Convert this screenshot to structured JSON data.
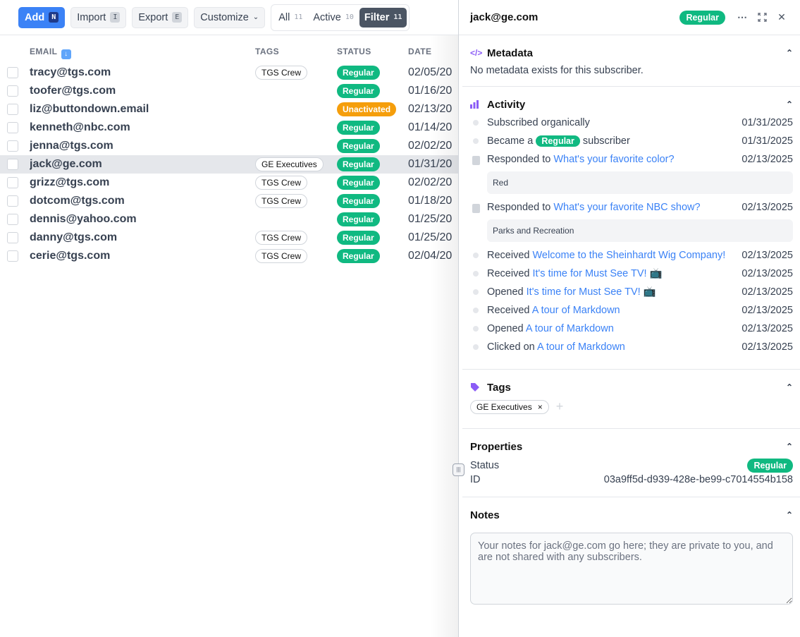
{
  "toolbar": {
    "add": {
      "label": "Add",
      "key": "N"
    },
    "import": {
      "label": "Import",
      "key": "I"
    },
    "export": {
      "label": "Export",
      "key": "E"
    },
    "customize": "Customize",
    "filters": [
      {
        "label": "All",
        "count": "11"
      },
      {
        "label": "Active",
        "count": "10"
      },
      {
        "label": "Filter",
        "count": "11",
        "active": true
      }
    ]
  },
  "table": {
    "headers": {
      "email": "EMAIL",
      "tags": "TAGS",
      "status": "STATUS",
      "date": "DATE"
    },
    "rows": [
      {
        "email": "tracy@tgs.com",
        "tag": "TGS Crew",
        "status": "Regular",
        "date": "02/05/20"
      },
      {
        "email": "toofer@tgs.com",
        "tag": "",
        "status": "Regular",
        "date": "01/16/20"
      },
      {
        "email": "liz@buttondown.email",
        "tag": "",
        "status": "Unactivated",
        "date": "02/13/20"
      },
      {
        "email": "kenneth@nbc.com",
        "tag": "",
        "status": "Regular",
        "date": "01/14/20"
      },
      {
        "email": "jenna@tgs.com",
        "tag": "",
        "status": "Regular",
        "date": "02/02/20"
      },
      {
        "email": "jack@ge.com",
        "tag": "GE Executives",
        "status": "Regular",
        "date": "01/31/20",
        "selected": true
      },
      {
        "email": "grizz@tgs.com",
        "tag": "TGS Crew",
        "status": "Regular",
        "date": "02/02/20"
      },
      {
        "email": "dotcom@tgs.com",
        "tag": "TGS Crew",
        "status": "Regular",
        "date": "01/18/20"
      },
      {
        "email": "dennis@yahoo.com",
        "tag": "",
        "status": "Regular",
        "date": "01/25/20"
      },
      {
        "email": "danny@tgs.com",
        "tag": "TGS Crew",
        "status": "Regular",
        "date": "01/25/20"
      },
      {
        "email": "cerie@tgs.com",
        "tag": "TGS Crew",
        "status": "Regular",
        "date": "02/04/20"
      }
    ]
  },
  "colors": {
    "regular": "#10b981",
    "unactivated": "#f59e0b",
    "accent": "#3b82f6",
    "section_icon": "#8b5cf6"
  },
  "panel": {
    "title": "jack@ge.com",
    "status": "Regular",
    "metadata": {
      "title": "Metadata",
      "empty": "No metadata exists for this subscriber."
    },
    "activity": {
      "title": "Activity",
      "items": [
        {
          "icon": "dot",
          "text": "Subscribed organically",
          "date": "01/31/2025"
        },
        {
          "icon": "dot",
          "text": "Became a",
          "badge": "Regular",
          "suffix": "subscriber",
          "date": "01/31/2025"
        },
        {
          "icon": "clipboard",
          "text": "Responded to",
          "link": "What's your favorite color?",
          "date": "02/13/2025",
          "response": "Red"
        },
        {
          "icon": "clipboard",
          "text": "Responded to",
          "link": "What's your favorite NBC show?",
          "date": "02/13/2025",
          "response": "Parks and Recreation"
        },
        {
          "icon": "dot",
          "text": "Received",
          "link": "Welcome to the Sheinhardt Wig Company!",
          "date": "02/13/2025"
        },
        {
          "icon": "dot",
          "text": "Received",
          "link": "It's time for Must See TV! 📺",
          "date": "02/13/2025"
        },
        {
          "icon": "dot",
          "text": "Opened",
          "link": "It's time for Must See TV! 📺",
          "date": "02/13/2025"
        },
        {
          "icon": "dot",
          "text": "Received",
          "link": "A tour of Markdown",
          "date": "02/13/2025"
        },
        {
          "icon": "dot",
          "text": "Opened",
          "link": "A tour of Markdown",
          "date": "02/13/2025"
        },
        {
          "icon": "dot",
          "text": "Clicked on",
          "link": "A tour of Markdown",
          "date": "02/13/2025"
        }
      ]
    },
    "tags": {
      "title": "Tags",
      "items": [
        "GE Executives"
      ]
    },
    "properties": {
      "title": "Properties",
      "status_label": "Status",
      "status": "Regular",
      "id_label": "ID",
      "id": "03a9ff5d-d939-428e-be99-c7014554b158"
    },
    "notes": {
      "title": "Notes",
      "placeholder": "Your notes for jack@ge.com go here; they are private to you, and are not shared with any subscribers."
    }
  }
}
